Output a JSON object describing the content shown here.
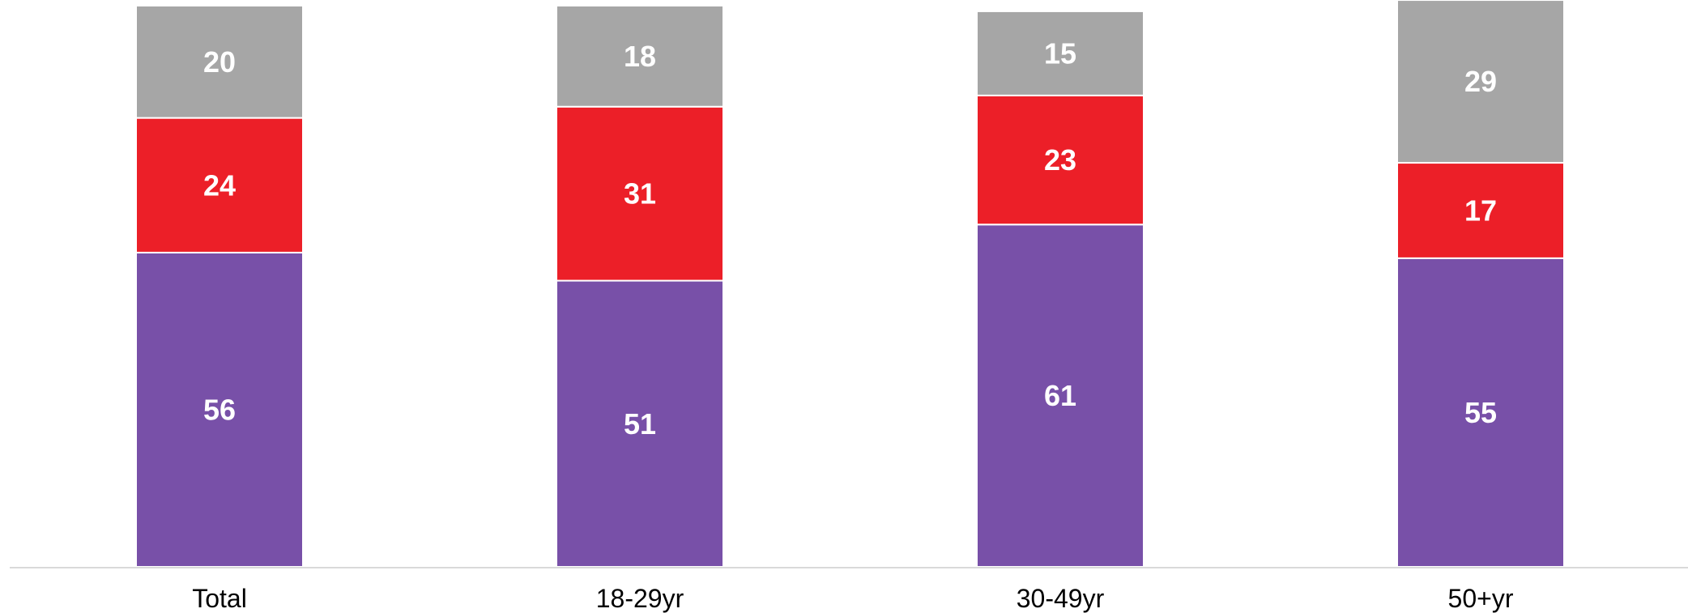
{
  "chart_data": {
    "type": "bar",
    "stacked": true,
    "percent_stacked": true,
    "title": "",
    "xlabel": "",
    "ylabel": "",
    "ylim": [
      0,
      100
    ],
    "grid": false,
    "legend": "none",
    "categories": [
      "Total",
      "18-29yr",
      "30-49yr",
      "50+yr"
    ],
    "series": [
      {
        "values": [
          56,
          51,
          61,
          55
        ],
        "color": "#7850A8"
      },
      {
        "values": [
          24,
          31,
          23,
          17
        ],
        "color": "#EC1F28"
      },
      {
        "values": [
          20,
          18,
          15,
          29
        ],
        "color": "#A6A6A6"
      }
    ]
  }
}
